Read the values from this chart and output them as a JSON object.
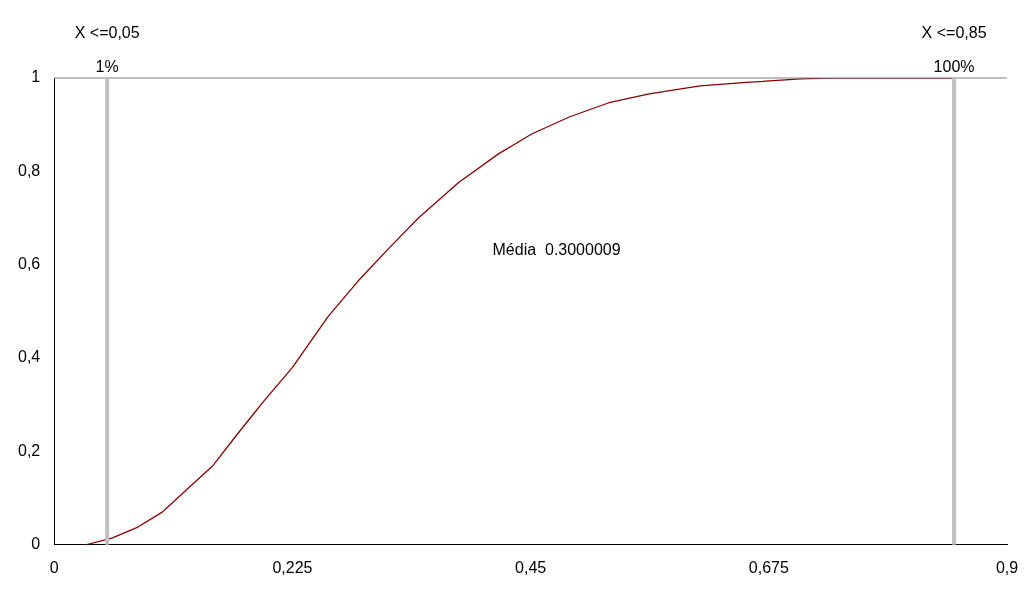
{
  "chart_data": {
    "type": "line",
    "marker": "none",
    "line_style": "solid",
    "grid": false,
    "legend": false,
    "x": [
      0.03,
      0.055,
      0.079,
      0.102,
      0.126,
      0.15,
      0.174,
      0.197,
      0.225,
      0.259,
      0.287,
      0.316,
      0.344,
      0.382,
      0.42,
      0.451,
      0.487,
      0.524,
      0.562,
      0.61,
      0.657,
      0.705,
      0.733,
      0.85
    ],
    "series": [
      {
        "color": "#8b0000",
        "values": [
          0,
          0.015,
          0.038,
          0.07,
          0.12,
          0.17,
          0.24,
          0.305,
          0.38,
          0.49,
          0.565,
          0.635,
          0.7,
          0.776,
          0.838,
          0.88,
          0.917,
          0.947,
          0.966,
          0.983,
          0.991,
          0.998,
          1,
          1
        ]
      }
    ],
    "xlim": [
      0,
      0.9
    ],
    "xticks": [
      0,
      {
        "value": 0.225,
        "label": "0,225"
      },
      {
        "value": 0.45,
        "label": "0,45"
      },
      {
        "value": 0.675,
        "label": "0,675"
      },
      {
        "value": 0.9,
        "label": "0,9"
      }
    ],
    "ylim": [
      0,
      1
    ],
    "yticks": [
      0,
      {
        "value": 0.2,
        "label": "0,2"
      },
      {
        "value": 0.4,
        "label": "0,4"
      },
      {
        "value": 0.6,
        "label": "0,6"
      },
      {
        "value": 0.8,
        "label": "0,8"
      },
      1
    ],
    "ref_lines": [
      {
        "axis": "x",
        "value": 0.05,
        "label": "X <=0,05",
        "color": "#c0c0c0"
      },
      {
        "axis": "x",
        "value": 0.85,
        "label": "X <=0,85",
        "color": "#c0c0c0"
      }
    ],
    "annotations": [
      {
        "text": "1%",
        "x": 0.05,
        "y": 1
      },
      {
        "text": "100%",
        "x": 0.85,
        "y": 1
      },
      "Média  0.3000009"
    ]
  }
}
